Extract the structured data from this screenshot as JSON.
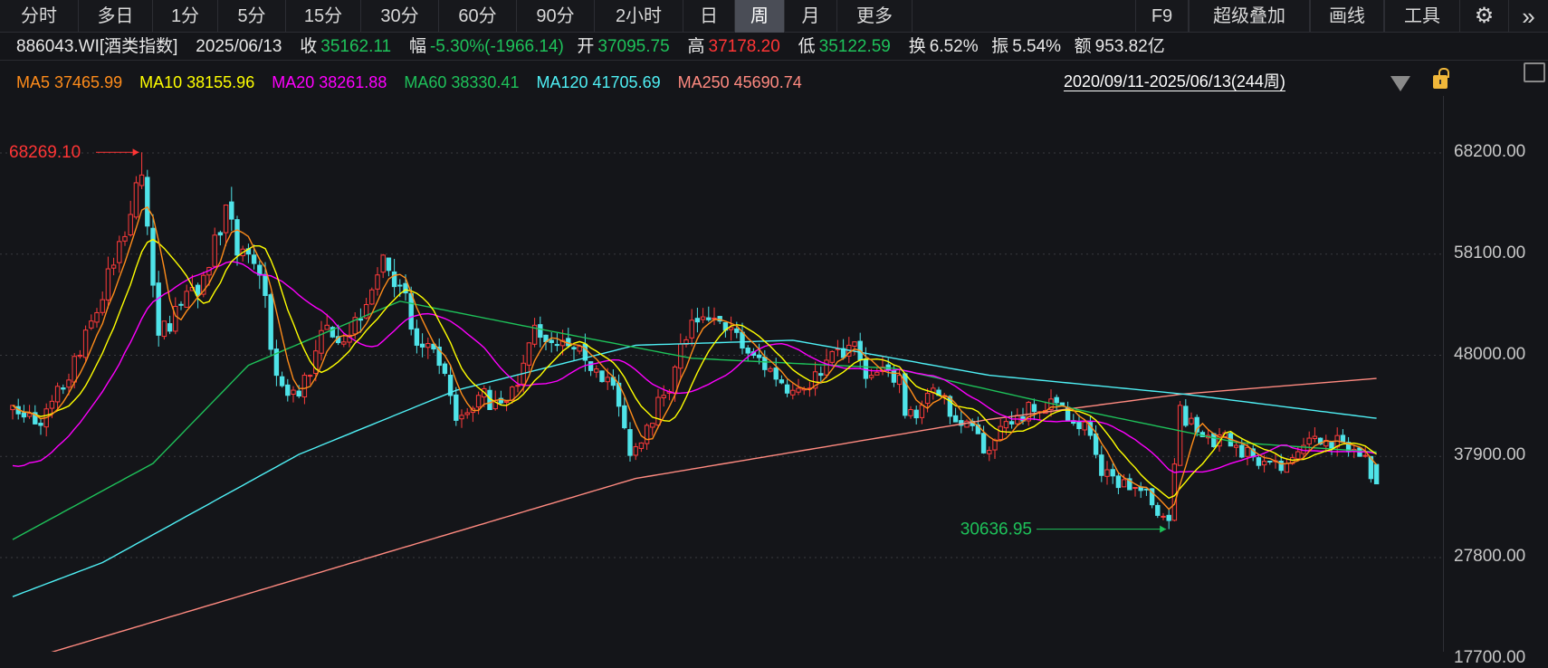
{
  "toolbar": {
    "tabs": [
      "分时",
      "多日",
      "1分",
      "5分",
      "15分",
      "30分",
      "60分",
      "90分",
      "2小时",
      "日",
      "周",
      "月",
      "更多"
    ],
    "active_tab": "周",
    "right": [
      "F9",
      "超级叠加",
      "画线",
      "工具"
    ],
    "icons": [
      "gear-icon",
      "double-chevron-right-icon"
    ]
  },
  "info": {
    "code": "886043.WI[酒类指数]",
    "date": "2025/06/13",
    "close_label": "收",
    "close": "35162.11",
    "change_label": "幅",
    "change": "-5.30%(-1966.14)",
    "open_label": "开",
    "open": "37095.75",
    "high_label": "高",
    "high": "37178.20",
    "low_label": "低",
    "low": "35122.59",
    "turnover_label": "换",
    "turnover": "6.52%",
    "amplitude_label": "振",
    "amplitude": "5.54%",
    "amount_label": "额",
    "amount": "953.82亿"
  },
  "ma": {
    "ma5": "MA5 37465.99",
    "ma10": "MA10 38155.96",
    "ma20": "MA20 38261.88",
    "ma60": "MA60 38330.41",
    "ma120": "MA120 41705.69",
    "ma250": "MA250 45690.74",
    "range": "2020/09/11-2025/06/13(244周)"
  },
  "colors": {
    "up": "#ff3b3b",
    "down": "#4fe3e8",
    "ma5": "#ff8c1a",
    "ma10": "#ffff00",
    "ma20": "#ff00ff",
    "ma60": "#1ec25a",
    "ma120": "#4ff0f5",
    "ma250": "#ff8a80",
    "grid": "#3a3b40",
    "high_label": "#ff3535",
    "low_label": "#1ec25a"
  },
  "chart_data": {
    "type": "candlestick",
    "period": "weekly",
    "weeks": 244,
    "y_ticks": [
      68200,
      58100,
      48000,
      37900,
      27800,
      17700
    ],
    "y_tick_labels": [
      "68200.00",
      "58100.00",
      "48000.00",
      "37900.00",
      "27800.00",
      "17700.00"
    ],
    "ylim": [
      17700,
      70000
    ],
    "max_label": "68269.10",
    "min_label": "30636.95",
    "max_week": 23,
    "min_week": 206,
    "last_candle": {
      "open": 37095.75,
      "high": 37178.2,
      "low": 35122.59,
      "close": 35162.11
    },
    "close_samples": [
      [
        0,
        43000
      ],
      [
        5,
        41000
      ],
      [
        12,
        48000
      ],
      [
        18,
        57000
      ],
      [
        23,
        66000
      ],
      [
        25,
        55000
      ],
      [
        26,
        50000
      ],
      [
        30,
        53000
      ],
      [
        33,
        54000
      ],
      [
        38,
        63000
      ],
      [
        40,
        58000
      ],
      [
        44,
        56000
      ],
      [
        47,
        46000
      ],
      [
        49,
        44000
      ],
      [
        53,
        46000
      ],
      [
        56,
        51000
      ],
      [
        60,
        50000
      ],
      [
        66,
        58000
      ],
      [
        69,
        55000
      ],
      [
        72,
        49000
      ],
      [
        76,
        47000
      ],
      [
        79,
        41500
      ],
      [
        83,
        44000
      ],
      [
        86,
        43500
      ],
      [
        90,
        45000
      ],
      [
        93,
        51000
      ],
      [
        97,
        49000
      ],
      [
        102,
        47500
      ],
      [
        107,
        45000
      ],
      [
        110,
        38000
      ],
      [
        113,
        41000
      ],
      [
        116,
        44000
      ],
      [
        121,
        51500
      ],
      [
        127,
        50500
      ],
      [
        132,
        48000
      ],
      [
        139,
        44500
      ],
      [
        144,
        46000
      ],
      [
        149,
        49000
      ],
      [
        153,
        46000
      ],
      [
        158,
        46000
      ],
      [
        159,
        42000
      ],
      [
        165,
        44000
      ],
      [
        169,
        41000
      ],
      [
        174,
        38500
      ],
      [
        179,
        42000
      ],
      [
        187,
        43000
      ],
      [
        192,
        40000
      ],
      [
        194,
        36000
      ],
      [
        201,
        34500
      ],
      [
        206,
        31500
      ],
      [
        208,
        43000
      ],
      [
        209,
        41000
      ],
      [
        213,
        40000
      ],
      [
        218,
        39000
      ],
      [
        222,
        37000
      ],
      [
        226,
        36500
      ],
      [
        230,
        39000
      ],
      [
        234,
        39500
      ],
      [
        241,
        38000
      ],
      [
        243,
        35162.11
      ]
    ],
    "ma60_samples": [
      [
        0,
        29600
      ],
      [
        25,
        37200
      ],
      [
        42,
        47000
      ],
      [
        69,
        53400
      ],
      [
        95,
        50500
      ],
      [
        121,
        47700
      ],
      [
        157,
        46700
      ],
      [
        192,
        42300
      ],
      [
        218,
        39300
      ],
      [
        243,
        38330.41
      ]
    ],
    "ma120_samples": [
      [
        0,
        23900
      ],
      [
        16,
        27300
      ],
      [
        51,
        38100
      ],
      [
        79,
        44500
      ],
      [
        111,
        49000
      ],
      [
        139,
        49500
      ],
      [
        174,
        46000
      ],
      [
        209,
        44100
      ],
      [
        243,
        41705.69
      ]
    ],
    "ma250_samples": [
      [
        3,
        17700
      ],
      [
        111,
        35700
      ],
      [
        174,
        41600
      ],
      [
        208,
        44100
      ],
      [
        243,
        45690.74
      ]
    ]
  }
}
